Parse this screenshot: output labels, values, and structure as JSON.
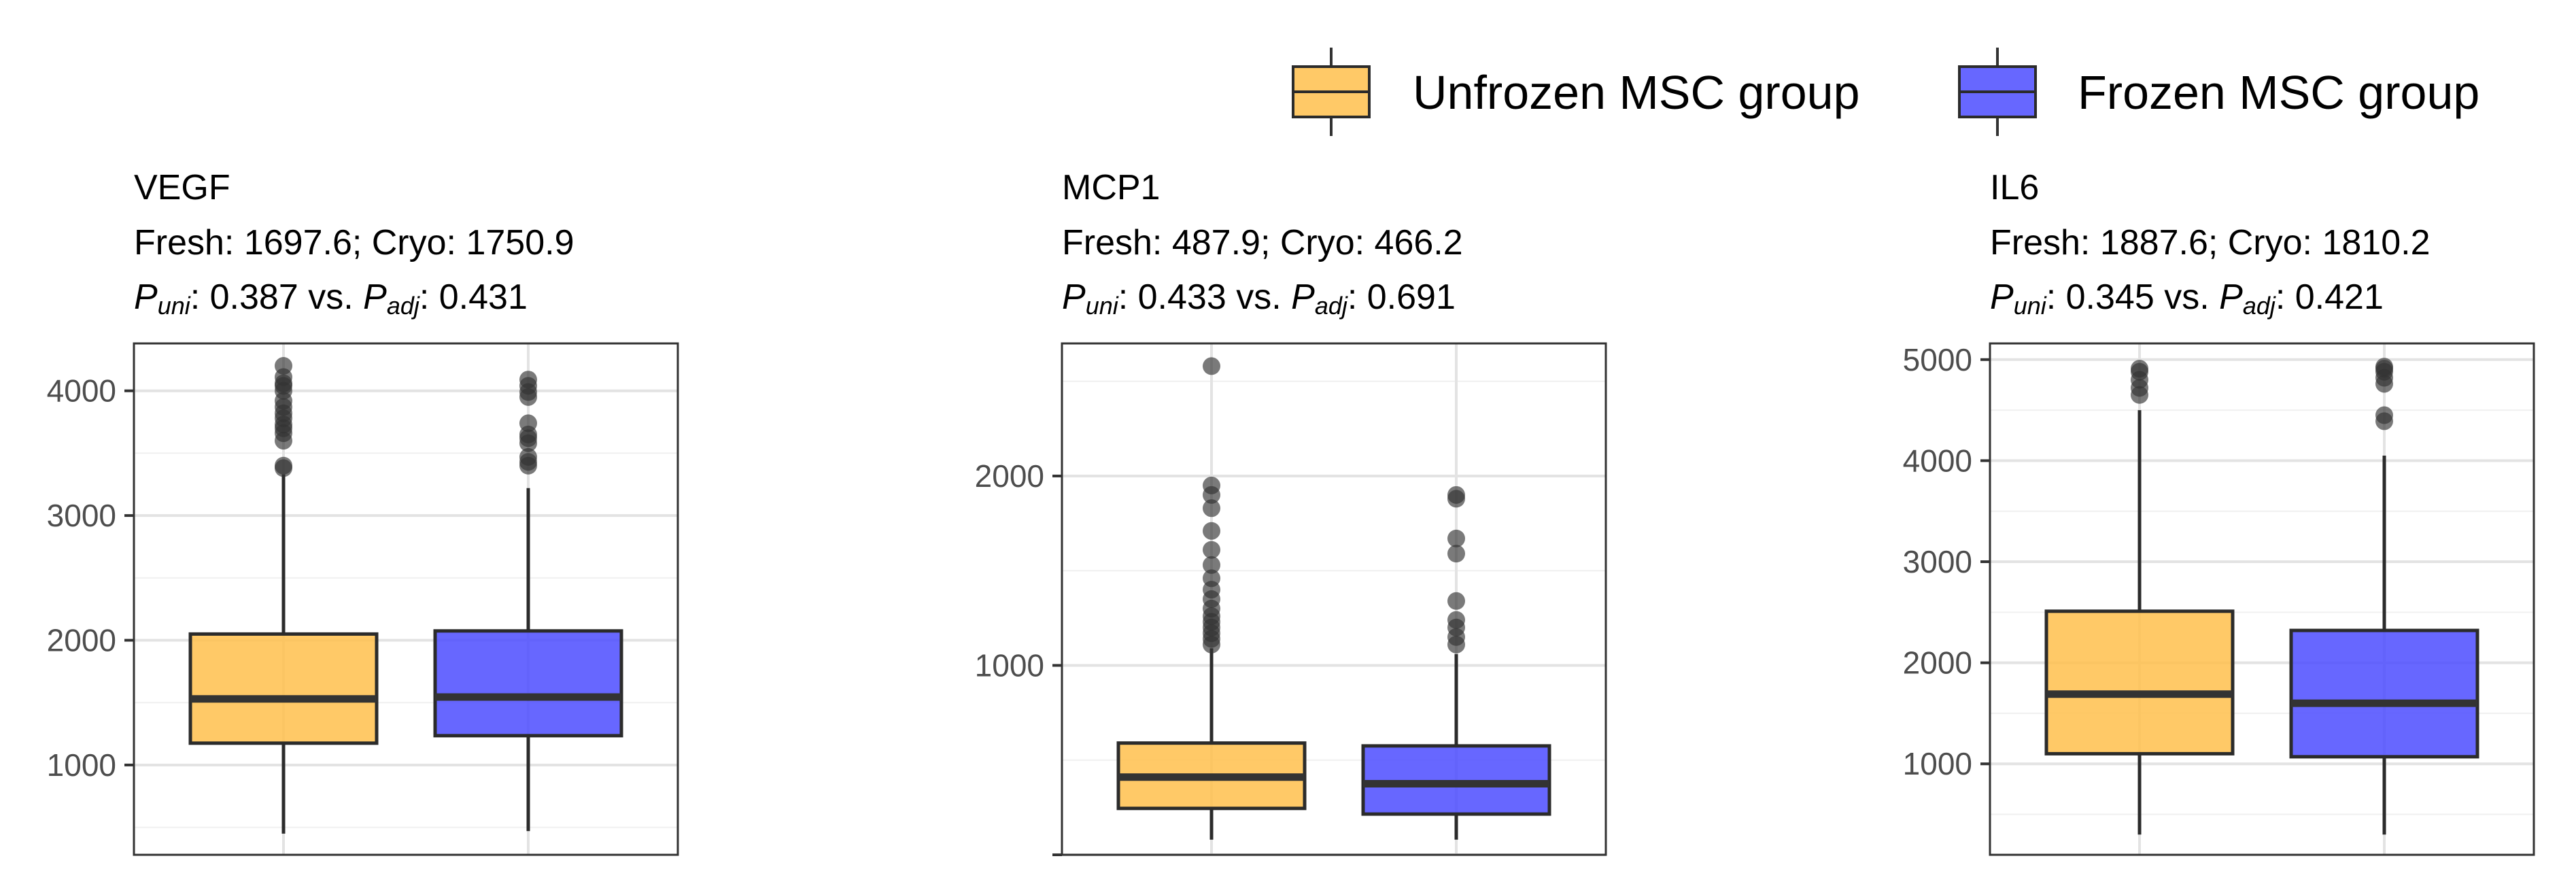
{
  "legend": {
    "items": [
      {
        "label": "Unfrozen MSC group",
        "color": "#FFC04C"
      },
      {
        "label": "Frozen MSC group",
        "color": "#4C4CFF"
      }
    ]
  },
  "chart_data": [
    {
      "type": "box",
      "title": "VEGF",
      "subtitle": "Fresh: 1697.6; Cryo: 1750.9",
      "p_uni": "0.387",
      "p_adj": "0.431",
      "ylim": [
        280,
        4380
      ],
      "yticks": [
        1000,
        2000,
        3000,
        4000
      ],
      "grid": true,
      "boxes": [
        {
          "group": "Unfrozen MSC group",
          "color": "#FFC04C",
          "min": 450,
          "q1": 1175,
          "median": 1530,
          "q3": 2050,
          "max": 3330,
          "outliers": [
            3380,
            3400,
            3600,
            3660,
            3700,
            3730,
            3780,
            3820,
            3870,
            3920,
            4000,
            4040,
            4060,
            4110,
            4200
          ]
        },
        {
          "group": "Frozen MSC group",
          "color": "#4C4CFF",
          "min": 470,
          "q1": 1235,
          "median": 1545,
          "q3": 2075,
          "max": 3220,
          "outliers": [
            3400,
            3430,
            3470,
            3580,
            3620,
            3650,
            3740,
            3950,
            3990,
            4040,
            4090
          ]
        }
      ]
    },
    {
      "type": "box",
      "title": "MCP1",
      "subtitle": "Fresh: 487.9; Cryo: 466.2",
      "p_uni": "0.433",
      "p_adj": "0.691",
      "ylim": [
        0,
        2700
      ],
      "yticks": [
        0,
        1000,
        2000
      ],
      "ytick_labels": [
        "",
        "1000",
        "2000"
      ],
      "grid": true,
      "boxes": [
        {
          "group": "Unfrozen MSC group",
          "color": "#FFC04C",
          "min": 80,
          "q1": 245,
          "median": 410,
          "q3": 590,
          "max": 1090,
          "outliers": [
            1110,
            1140,
            1170,
            1200,
            1230,
            1260,
            1300,
            1350,
            1400,
            1460,
            1530,
            1610,
            1710,
            1830,
            1900,
            1950,
            2580
          ]
        },
        {
          "group": "Frozen MSC group",
          "color": "#4C4CFF",
          "min": 80,
          "q1": 215,
          "median": 375,
          "q3": 575,
          "max": 1060,
          "outliers": [
            1110,
            1150,
            1200,
            1240,
            1340,
            1590,
            1670,
            1880,
            1900
          ]
        }
      ]
    },
    {
      "type": "box",
      "title": "IL6",
      "subtitle": "Fresh: 1887.6; Cryo: 1810.2",
      "p_uni": "0.345",
      "p_adj": "0.421",
      "ylim": [
        100,
        5160
      ],
      "yticks": [
        1000,
        2000,
        3000,
        4000,
        5000
      ],
      "grid": true,
      "boxes": [
        {
          "group": "Unfrozen MSC group",
          "color": "#FFC04C",
          "min": 300,
          "q1": 1100,
          "median": 1690,
          "q3": 2510,
          "max": 4500,
          "outliers": [
            4650,
            4720,
            4800,
            4880,
            4910
          ]
        },
        {
          "group": "Frozen MSC group",
          "color": "#4C4CFF",
          "min": 300,
          "q1": 1070,
          "median": 1600,
          "q3": 2320,
          "max": 4050,
          "outliers": [
            4390,
            4450,
            4760,
            4820,
            4880,
            4910,
            4930
          ]
        }
      ]
    }
  ]
}
